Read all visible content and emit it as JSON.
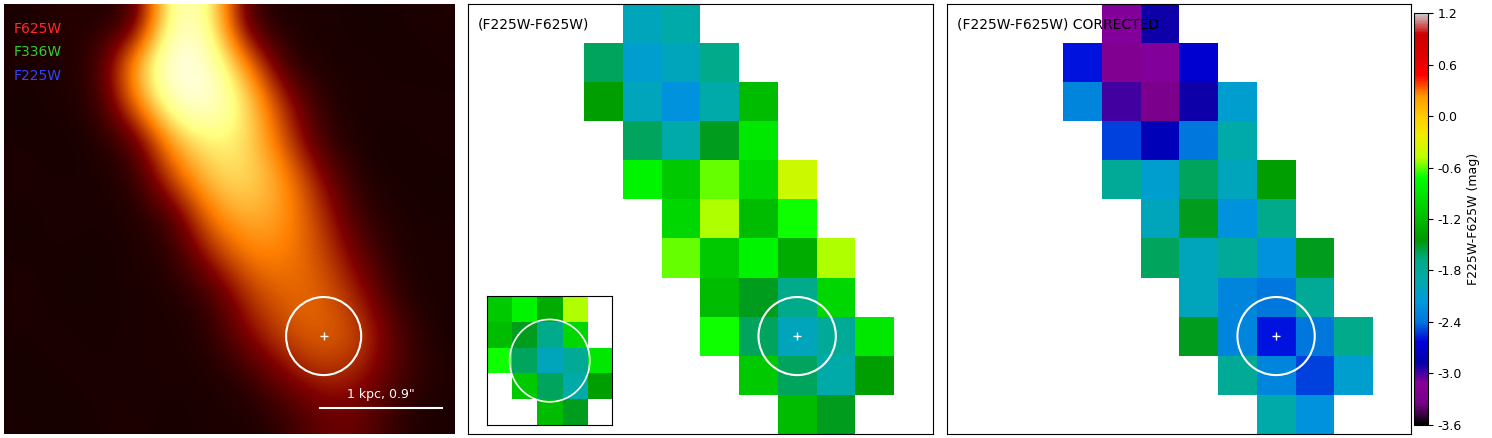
{
  "chart_data": [
    {
      "type": "image",
      "tick_labels": false,
      "filters": [
        "F625W",
        "F336W",
        "F225W"
      ],
      "colors": [
        "#ff2a2a",
        "#33cc33",
        "#3344ff"
      ],
      "scale_bar": "1 kpc, 0.9\"",
      "range": [
        0,
        1
      ],
      "brightness": [
        [
          0.05,
          0.08,
          0.06,
          0.1,
          0.9,
          0.8,
          0.1,
          0.05,
          0.06,
          0.04,
          0.05,
          0.06
        ],
        [
          0.06,
          0.05,
          0.1,
          0.6,
          1.0,
          0.9,
          0.5,
          0.08,
          0.05,
          0.06,
          0.04,
          0.05
        ],
        [
          0.04,
          0.06,
          0.08,
          0.5,
          0.9,
          0.95,
          0.7,
          0.3,
          0.07,
          0.05,
          0.06,
          0.05
        ],
        [
          0.05,
          0.04,
          0.06,
          0.15,
          0.6,
          0.75,
          0.7,
          0.4,
          0.1,
          0.05,
          0.04,
          0.06
        ],
        [
          0.06,
          0.05,
          0.05,
          0.08,
          0.4,
          0.65,
          0.7,
          0.55,
          0.25,
          0.06,
          0.05,
          0.04
        ],
        [
          0.04,
          0.06,
          0.05,
          0.06,
          0.12,
          0.5,
          0.6,
          0.55,
          0.35,
          0.1,
          0.06,
          0.05
        ],
        [
          0.05,
          0.05,
          0.04,
          0.06,
          0.08,
          0.3,
          0.5,
          0.5,
          0.4,
          0.2,
          0.05,
          0.06
        ],
        [
          0.06,
          0.04,
          0.05,
          0.05,
          0.06,
          0.1,
          0.35,
          0.45,
          0.45,
          0.3,
          0.08,
          0.05
        ],
        [
          0.05,
          0.06,
          0.04,
          0.06,
          0.05,
          0.08,
          0.25,
          0.4,
          0.45,
          0.4,
          0.15,
          0.05
        ],
        [
          0.04,
          0.05,
          0.06,
          0.05,
          0.06,
          0.05,
          0.1,
          0.25,
          0.35,
          0.3,
          0.15,
          0.06
        ],
        [
          0.05,
          0.04,
          0.05,
          0.06,
          0.04,
          0.06,
          0.05,
          0.1,
          0.2,
          0.2,
          0.08,
          0.05
        ]
      ]
    },
    {
      "type": "heatmap",
      "title": "(F225W-F625W)",
      "tick_labels": false,
      "cells": [
        [
          null,
          null,
          null,
          null,
          -2.0,
          -1.9,
          null,
          null,
          null,
          null,
          null,
          null
        ],
        [
          null,
          null,
          null,
          -1.6,
          -2.1,
          -2.0,
          -1.7,
          null,
          null,
          null,
          null,
          null
        ],
        [
          null,
          null,
          null,
          -1.4,
          -2.0,
          -2.2,
          -1.9,
          -1.2,
          null,
          null,
          null,
          null
        ],
        [
          null,
          null,
          null,
          null,
          -1.6,
          -1.9,
          -1.5,
          -0.9,
          null,
          null,
          null,
          null
        ],
        [
          null,
          null,
          null,
          null,
          -0.8,
          -1.1,
          -0.6,
          -1.0,
          -0.4,
          null,
          null,
          null
        ],
        [
          null,
          null,
          null,
          null,
          null,
          -1.0,
          -0.5,
          -1.2,
          -0.7,
          null,
          null,
          null
        ],
        [
          null,
          null,
          null,
          null,
          null,
          -0.6,
          -1.1,
          -0.8,
          -1.3,
          -0.5,
          null,
          null
        ],
        [
          null,
          null,
          null,
          null,
          null,
          null,
          -1.2,
          -1.5,
          -1.7,
          -1.0,
          null,
          null
        ],
        [
          null,
          null,
          null,
          null,
          null,
          null,
          -0.7,
          -1.6,
          -2.0,
          -1.8,
          -0.9,
          null
        ],
        [
          null,
          null,
          null,
          null,
          null,
          null,
          null,
          -1.1,
          -1.6,
          -1.9,
          -1.4,
          null
        ],
        [
          null,
          null,
          null,
          null,
          null,
          null,
          null,
          null,
          -1.2,
          -1.5,
          null,
          null
        ]
      ]
    },
    {
      "type": "heatmap",
      "title": "(F225W-F625W) CORRECTED",
      "tick_labels": false,
      "cells": [
        [
          null,
          null,
          null,
          null,
          -3.1,
          -2.9,
          null,
          null,
          null,
          null,
          null,
          null
        ],
        [
          null,
          null,
          null,
          -2.6,
          -3.2,
          -3.1,
          -2.7,
          null,
          null,
          null,
          null,
          null
        ],
        [
          null,
          null,
          null,
          -2.3,
          -3.0,
          -3.3,
          -2.9,
          -2.1,
          null,
          null,
          null,
          null
        ],
        [
          null,
          null,
          null,
          null,
          -2.5,
          -2.8,
          -2.4,
          -1.9,
          null,
          null,
          null,
          null
        ],
        [
          null,
          null,
          null,
          null,
          -1.8,
          -2.1,
          -1.6,
          -2.0,
          -1.4,
          null,
          null,
          null
        ],
        [
          null,
          null,
          null,
          null,
          null,
          -2.0,
          -1.5,
          -2.2,
          -1.7,
          null,
          null,
          null
        ],
        [
          null,
          null,
          null,
          null,
          null,
          -1.6,
          -2.0,
          -1.8,
          -2.2,
          -1.5,
          null,
          null
        ],
        [
          null,
          null,
          null,
          null,
          null,
          null,
          -2.0,
          -2.3,
          -2.4,
          -1.8,
          null,
          null
        ],
        [
          null,
          null,
          null,
          null,
          null,
          null,
          -1.5,
          -2.3,
          -2.6,
          -2.4,
          -1.7,
          null
        ],
        [
          null,
          null,
          null,
          null,
          null,
          null,
          null,
          -1.8,
          -2.3,
          -2.5,
          -2.1,
          null
        ],
        [
          null,
          null,
          null,
          null,
          null,
          null,
          null,
          null,
          -1.9,
          -2.2,
          null,
          null
        ]
      ],
      "colorbar": {
        "label": "F225W-F625W (mag)",
        "range": [
          -3.6,
          1.2
        ],
        "ticks": [
          1.2,
          0.6,
          0.0,
          -0.6,
          -1.2,
          -1.8,
          -2.4,
          -3.0,
          -3.6
        ]
      }
    }
  ]
}
